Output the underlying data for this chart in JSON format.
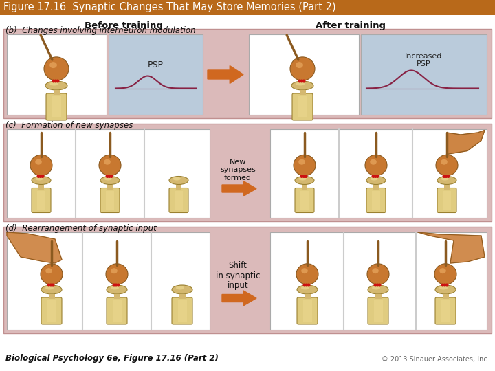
{
  "title": "Figure 17.16  Synaptic Changes That May Store Memories (Part 2)",
  "title_bg": "#B8691A",
  "title_color": "#FFFFFF",
  "title_fontsize": 10.5,
  "bg_color": "#FFFFFF",
  "panel_bg": "#DBBABA",
  "before_label": "Before training",
  "after_label": "After training",
  "section_b_label": "(b)  Changes involving interneuron modulation",
  "section_c_label": "(c)  Formation of new synapses",
  "section_d_label": "(d)  Rearrangement of synaptic input",
  "psp_label": "PSP",
  "increased_psp_label": "Increased\nPSP",
  "new_synapses_label": "New\nsynapses\nformed",
  "shift_label": "Shift\nin synaptic\ninput",
  "footer_left": "Biological Psychology 6e, Figure 17.16 (Part 2)",
  "footer_right": "© 2013 Sinauer Associates, Inc.",
  "panel_b_bg": "#BACBDB",
  "pre_color": "#C87830",
  "pre_light": "#E8A860",
  "post_color": "#D4B870",
  "post_light": "#ECD890",
  "arrow_color": "#D06820",
  "wave_color": "#882244",
  "red_dot_color": "#CC1111",
  "stem_color": "#E0CC80"
}
